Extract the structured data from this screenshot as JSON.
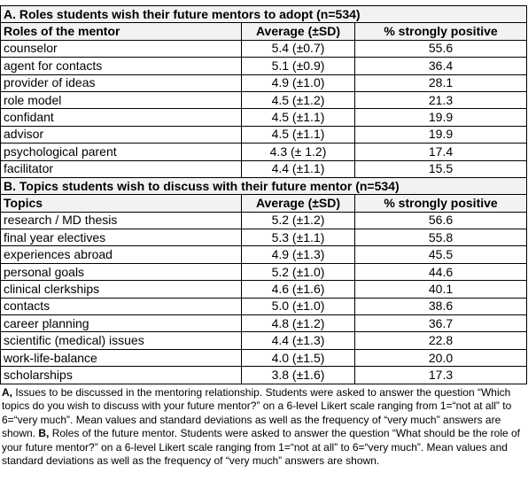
{
  "sections": [
    {
      "title": "A. Roles students wish their future mentors to adopt (n=534)",
      "header": [
        "Roles of the mentor",
        "Average (±SD)",
        "% strongly positive"
      ],
      "rows": [
        [
          "counselor",
          "5.4 (±0.7)",
          "55.6"
        ],
        [
          "agent for contacts",
          "5.1 (±0.9)",
          "36.4"
        ],
        [
          "provider of ideas",
          "4.9 (±1.0)",
          "28.1"
        ],
        [
          "role model",
          "4.5 (±1.2)",
          "21.3"
        ],
        [
          "confidant",
          "4.5 (±1.1)",
          "19.9"
        ],
        [
          "advisor",
          "4.5 (±1.1)",
          "19.9"
        ],
        [
          "psychological parent",
          "4.3 (± 1.2)",
          "17.4"
        ],
        [
          "facilitator",
          "4.4 (±1.1)",
          "15.5"
        ]
      ]
    },
    {
      "title": "B. Topics students wish to discuss with their future mentor (n=534)",
      "header": [
        "Topics",
        "Average (±SD)",
        "% strongly positive"
      ],
      "rows": [
        [
          "research / MD thesis",
          "5.2 (±1.2)",
          "56.6"
        ],
        [
          "final year electives",
          "5.3 (±1.1)",
          "55.8"
        ],
        [
          "experiences abroad",
          "4.9 (±1.3)",
          "45.5"
        ],
        [
          "personal goals",
          "5.2 (±1.0)",
          "44.6"
        ],
        [
          "clinical clerkships",
          "4.6 (±1.6)",
          "40.1"
        ],
        [
          "contacts",
          "5.0 (±1.0)",
          "38.6"
        ],
        [
          "career planning",
          "4.8 (±1.2)",
          "36.7"
        ],
        [
          "scientific (medical) issues",
          "4.4 (±1.3)",
          "22.8"
        ],
        [
          "work-life-balance",
          "4.0 (±1.5)",
          "20.0"
        ],
        [
          "scholarships",
          "3.8 (±1.6)",
          "17.3"
        ]
      ]
    }
  ],
  "footnote": [
    {
      "label": "A,",
      "text": " Issues to be discussed in the mentoring relationship. Students were asked to answer the question “Which topics do you wish to discuss with your future mentor?” on a 6-level Likert scale ranging from 1=“not at all” to 6=“very much”. Mean values and standard deviations as well as the frequency of “very much” answers are shown. "
    },
    {
      "label": "B,",
      "text": " Roles of the future mentor. Students were asked to answer the question “What should be the role of your future mentor?” on a 6-level Likert scale ranging from 1=“not at all” to 6=“very much”. Mean values and standard deviations as well as the frequency of “very much” answers are shown."
    }
  ]
}
